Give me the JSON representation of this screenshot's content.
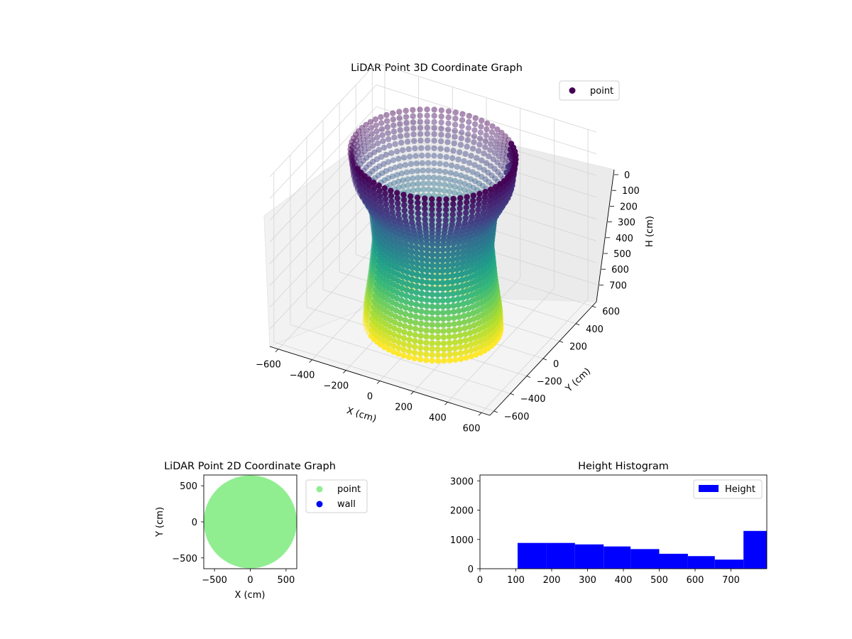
{
  "chart_data": [
    {
      "type": "scatter",
      "projection": "3d",
      "title": "LiDAR Point 3D Coordinate Graph",
      "xlabel": "X (cm)",
      "ylabel": "Y (cm)",
      "zlabel": "H (cm)",
      "x_ticks": [
        "−600",
        "−400",
        "−200",
        "0",
        "200",
        "400",
        "600"
      ],
      "y_ticks": [
        "−600",
        "−400",
        "−200",
        "0",
        "200",
        "400",
        "600"
      ],
      "z_ticks": [
        "0",
        "100",
        "200",
        "300",
        "400",
        "500",
        "600",
        "700"
      ],
      "xlim": [
        -650,
        650
      ],
      "ylim": [
        -650,
        650
      ],
      "zlim": [
        0,
        780
      ],
      "z_inverted": true,
      "colormap": "viridis",
      "legend": {
        "label": "point",
        "placement": "top-right",
        "color": "#440154"
      },
      "surface": {
        "shape": "cylindrical wall of points",
        "radius_profile": [
          {
            "h": 0,
            "r": 440
          },
          {
            "h": 120,
            "r": 420
          },
          {
            "h": 250,
            "r": 330
          },
          {
            "h": 400,
            "r": 310
          },
          {
            "h": 560,
            "r": 330
          },
          {
            "h": 700,
            "r": 355
          },
          {
            "h": 780,
            "r": 360
          }
        ],
        "color_by": "height"
      },
      "grid": true
    },
    {
      "type": "scatter",
      "title": "LiDAR Point 2D Coordinate Graph",
      "xlabel": "X (cm)",
      "ylabel": "Y (cm)",
      "x_ticks": [
        "−500",
        "0",
        "500"
      ],
      "y_ticks": [
        "500",
        "0",
        "−500"
      ],
      "xlim": [
        -650,
        650
      ],
      "ylim": [
        -650,
        650
      ],
      "series": [
        {
          "name": "point",
          "color": "#90ee90",
          "shape": "filled disc",
          "center": [
            0,
            0
          ],
          "radius": 650
        },
        {
          "name": "wall",
          "color": "#0000ff",
          "points": []
        }
      ],
      "legend": {
        "placement": "outside-right"
      }
    },
    {
      "type": "bar",
      "subtype": "histogram",
      "title": "Height Histogram",
      "x_ticks": [
        "0",
        "100",
        "200",
        "300",
        "400",
        "500",
        "600",
        "700"
      ],
      "y_ticks": [
        "0",
        "1000",
        "2000",
        "3000"
      ],
      "xlim": [
        0,
        800
      ],
      "ylim": [
        0,
        3200
      ],
      "color": "#0000ff",
      "series": [
        {
          "name": "Height",
          "bins": [
            {
              "x0": 105,
              "x1": 185,
              "count": 880
            },
            {
              "x0": 185,
              "x1": 265,
              "count": 880
            },
            {
              "x0": 265,
              "x1": 345,
              "count": 830
            },
            {
              "x0": 345,
              "x1": 420,
              "count": 760
            },
            {
              "x0": 420,
              "x1": 500,
              "count": 670
            },
            {
              "x0": 500,
              "x1": 580,
              "count": 510
            },
            {
              "x0": 580,
              "x1": 655,
              "count": 430
            },
            {
              "x0": 655,
              "x1": 735,
              "count": 310
            },
            {
              "x0": 735,
              "x1": 800,
              "count": 1290
            }
          ]
        }
      ],
      "legend": {
        "placement": "top-right"
      }
    }
  ]
}
